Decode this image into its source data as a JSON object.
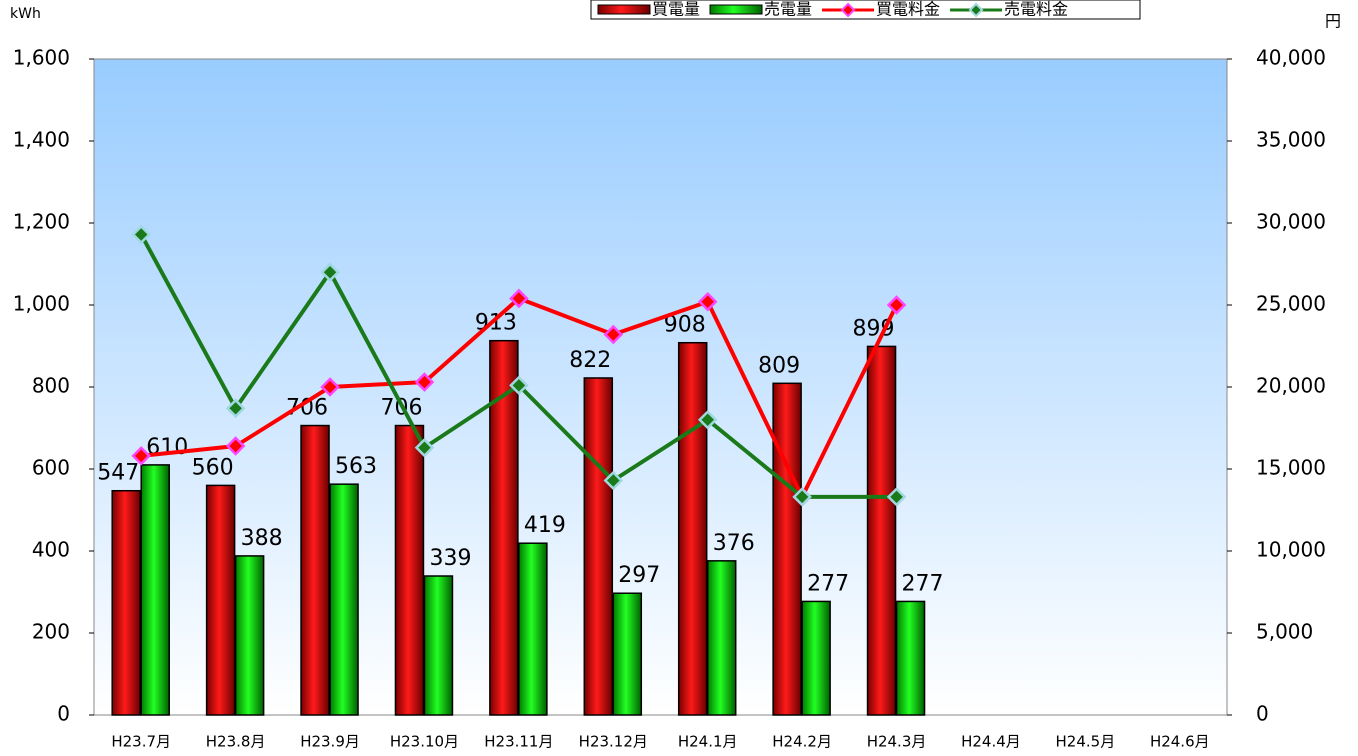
{
  "chart_data": {
    "type": "bar",
    "y_label": "kWh",
    "y2_label": "円",
    "categories": [
      "H23.7月",
      "H23.8月",
      "H23.9月",
      "H23.10月",
      "H23.11月",
      "H23.12月",
      "H24.1月",
      "H24.2月",
      "H24.3月",
      "H24.4月",
      "H24.5月",
      "H24.6月"
    ],
    "series": [
      {
        "name": "買電量",
        "type": "bar",
        "color": "#e00000",
        "values": [
          547,
          560,
          706,
          706,
          913,
          822,
          908,
          809,
          899,
          null,
          null,
          null
        ]
      },
      {
        "name": "売電量",
        "type": "bar",
        "color": "#00dd00",
        "values": [
          610,
          388,
          563,
          339,
          419,
          297,
          376,
          277,
          277,
          null,
          null,
          null
        ]
      },
      {
        "name": "買電料金",
        "type": "line",
        "axis": "y2",
        "color": "#ff0000",
        "marker_color": "#ff44ff",
        "values": [
          15800,
          16400,
          20000,
          20300,
          25400,
          23200,
          25200,
          13300,
          25000,
          null,
          null,
          null
        ]
      },
      {
        "name": "売電料金",
        "type": "line",
        "axis": "y2",
        "color": "#1a7a1a",
        "marker_color": "#9fd8e0",
        "values": [
          29300,
          18700,
          27000,
          16300,
          20100,
          14300,
          18000,
          13300,
          13300,
          null,
          null,
          null
        ]
      }
    ],
    "ylim": [
      0,
      1600
    ],
    "yticks": [
      0,
      200,
      400,
      600,
      800,
      {
        "value": 1000,
        "label": "1,000"
      },
      {
        "value": 1200,
        "label": "1,200"
      },
      {
        "value": 1400,
        "label": "1,400"
      },
      {
        "value": 1600,
        "label": "1,600"
      }
    ],
    "y2lim": [
      0,
      40000
    ],
    "y2ticks": [
      0,
      {
        "value": 5000,
        "label": "5,000"
      },
      {
        "value": 10000,
        "label": "10,000"
      },
      {
        "value": 15000,
        "label": "15,000"
      },
      {
        "value": 20000,
        "label": "20,000"
      },
      {
        "value": 25000,
        "label": "25,000"
      },
      {
        "value": 30000,
        "label": "30,000"
      },
      {
        "value": 35000,
        "label": "35,000"
      },
      {
        "value": 40000,
        "label": "40,000"
      }
    ],
    "legend": "top",
    "grid": false
  }
}
